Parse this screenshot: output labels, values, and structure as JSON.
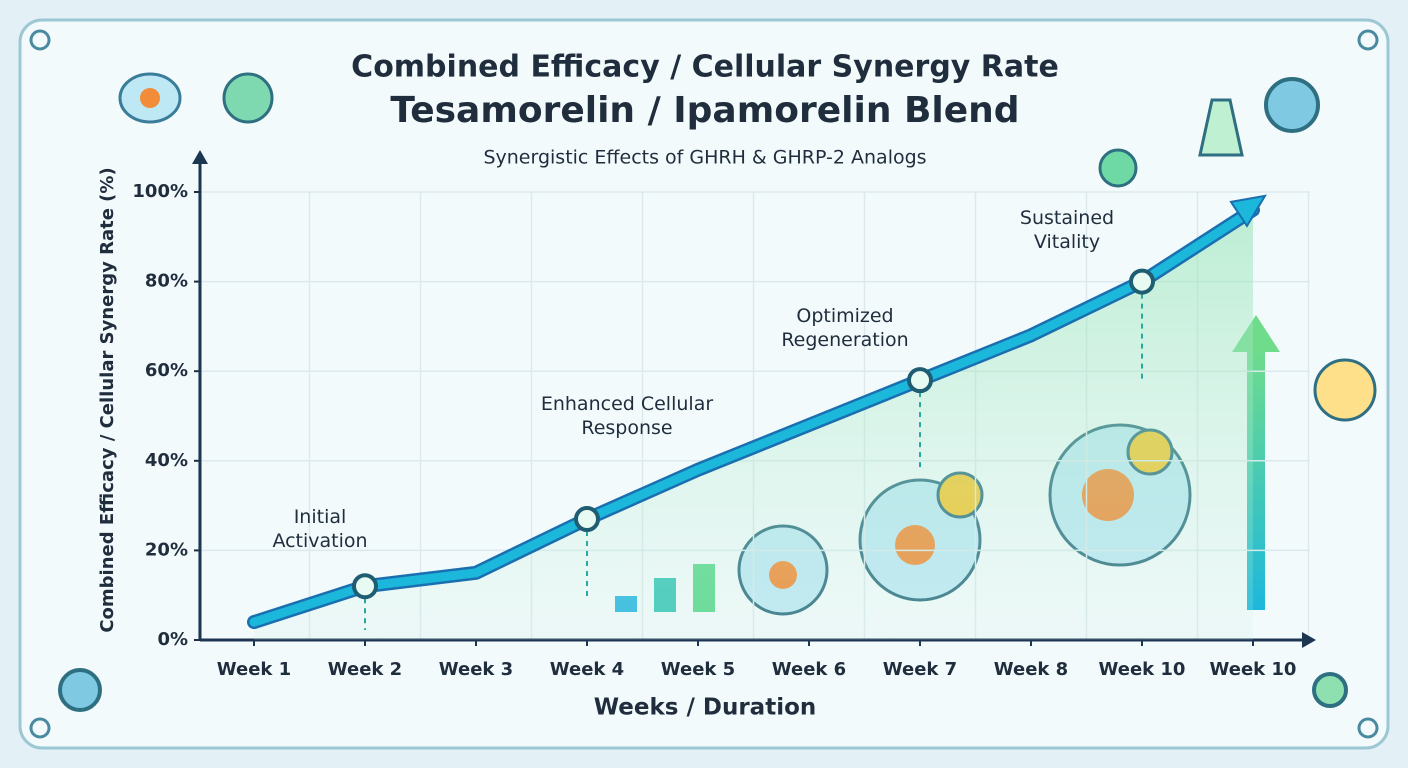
{
  "chart_data": {
    "type": "line",
    "title": "Combined Efficacy / Cellular Synergy Rate",
    "subtitle": "Tesamorelin / Ipamorelin Blend",
    "description": "Synergistic Effects of GHRH & GHRP-2 Analogs",
    "y_label": "Combined Efficacy / Cellular Synergy Rate (%)",
    "x_label": "Weeks / Duration",
    "categories": [
      "Week 1",
      "Week 2",
      "Week 3",
      "Week 4",
      "Week 5",
      "Week 6",
      "Week 7",
      "Week 8",
      "Week 10",
      "Week 10"
    ],
    "series": [
      {
        "name": "Combined Efficacy",
        "color": "#1cb8dc",
        "values": [
          4,
          12,
          15,
          27,
          38,
          48,
          58,
          68,
          80,
          96
        ]
      }
    ],
    "ylim": [
      0,
      100
    ],
    "yticks": [
      {
        "value": 0,
        "label": "0%"
      },
      {
        "value": 20,
        "label": "20%"
      },
      {
        "value": 40,
        "label": "40%"
      },
      {
        "value": 60,
        "label": "60%"
      },
      {
        "value": 80,
        "label": "80%"
      },
      {
        "value": 100,
        "label": "100%"
      }
    ],
    "grid": true,
    "annotations": [
      "Initial Activation",
      "Enhanced Cellular Response",
      "Optimized Regeneration",
      "Sustained Vitality"
    ]
  }
}
